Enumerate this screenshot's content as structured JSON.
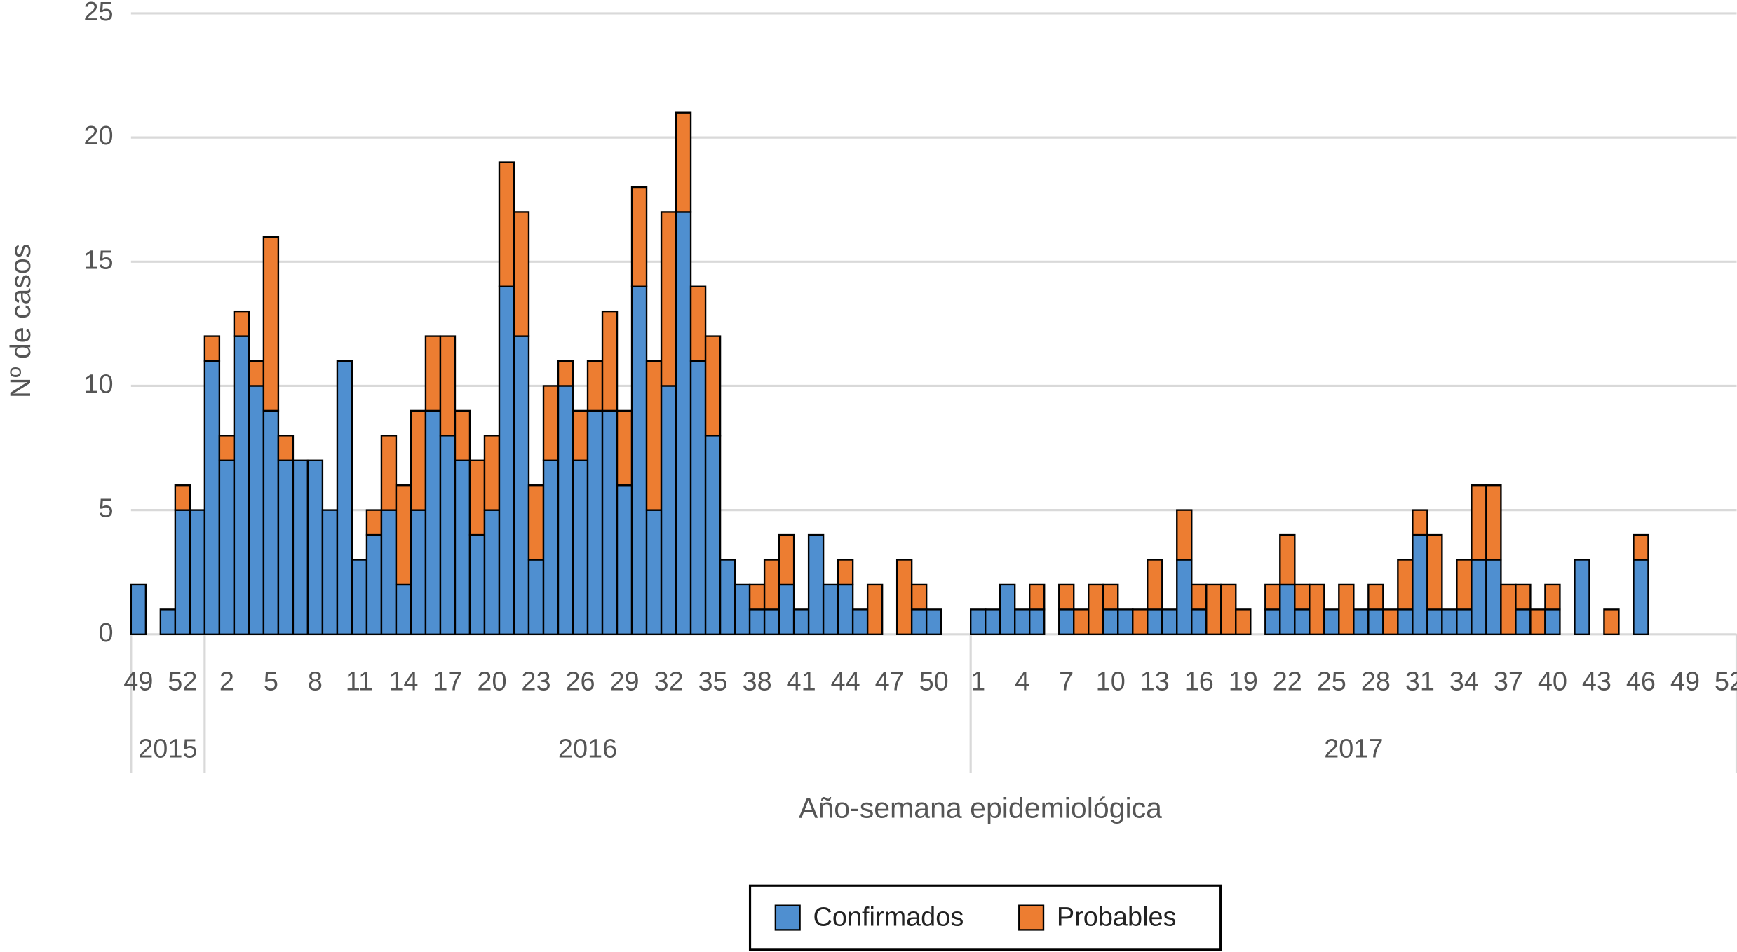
{
  "chart_data": {
    "type": "stacked_bar",
    "y_label": "Nº de casos",
    "x_label": "Año-semana epidemiológica",
    "categories": [
      "49",
      null,
      null,
      "52",
      null,
      null,
      "2",
      null,
      null,
      "5",
      null,
      null,
      "8",
      null,
      null,
      "11",
      null,
      null,
      "14",
      null,
      null,
      "17",
      null,
      null,
      "20",
      null,
      null,
      "23",
      null,
      null,
      "26",
      null,
      null,
      "29",
      null,
      null,
      "32",
      null,
      null,
      "35",
      null,
      null,
      "38",
      null,
      null,
      "41",
      null,
      null,
      "44",
      null,
      null,
      "47",
      null,
      null,
      "50",
      null,
      null,
      "1",
      null,
      null,
      "4",
      null,
      null,
      "7",
      null,
      null,
      "10",
      null,
      null,
      "13",
      null,
      null,
      "16",
      null,
      null,
      "19",
      null,
      null,
      "22",
      null,
      null,
      "25",
      null,
      null,
      "28",
      null,
      null,
      "31",
      null,
      null,
      "34",
      null,
      null,
      "37",
      null,
      null,
      "40",
      null,
      null,
      "43",
      null,
      null,
      "46",
      null,
      null,
      "49",
      null,
      null,
      "52"
    ],
    "years": [
      "2015",
      "2016",
      "2017"
    ],
    "series": [
      {
        "name": "Confirmados",
        "color": "#4f8fd0",
        "values": [
          2,
          0,
          1,
          5,
          5,
          11,
          7,
          12,
          10,
          9,
          7,
          7,
          7,
          5,
          11,
          3,
          4,
          5,
          2,
          5,
          9,
          8,
          7,
          4,
          5,
          14,
          12,
          3,
          7,
          10,
          7,
          9,
          9,
          6,
          14,
          5,
          10,
          17,
          11,
          8,
          3,
          2,
          1,
          1,
          2,
          1,
          4,
          2,
          2,
          1,
          0,
          0,
          0,
          1,
          1,
          0,
          0,
          1,
          1,
          2,
          1,
          1,
          0,
          1,
          0,
          0,
          1,
          1,
          0,
          1,
          1,
          3,
          1,
          0,
          0,
          0,
          0,
          1,
          2,
          1,
          0,
          1,
          0,
          1,
          1,
          0,
          1,
          4,
          1,
          1,
          1,
          3,
          3,
          0,
          1,
          0,
          1,
          0,
          3,
          0,
          0,
          0,
          3,
          0,
          0,
          0,
          0,
          0,
          0
        ]
      },
      {
        "name": "Probables",
        "color": "#ed7d31",
        "values": [
          0,
          0,
          0,
          1,
          0,
          1,
          1,
          1,
          1,
          7,
          1,
          0,
          0,
          0,
          0,
          0,
          1,
          3,
          4,
          4,
          3,
          4,
          2,
          3,
          3,
          5,
          5,
          3,
          3,
          1,
          2,
          2,
          4,
          3,
          4,
          6,
          7,
          4,
          3,
          4,
          0,
          0,
          1,
          2,
          2,
          0,
          0,
          0,
          1,
          0,
          2,
          0,
          3,
          1,
          0,
          0,
          0,
          0,
          0,
          0,
          0,
          1,
          0,
          1,
          1,
          2,
          1,
          0,
          1,
          2,
          0,
          2,
          1,
          2,
          2,
          1,
          0,
          1,
          2,
          1,
          2,
          0,
          2,
          0,
          1,
          1,
          2,
          1,
          3,
          0,
          2,
          3,
          3,
          2,
          1,
          1,
          1,
          0,
          0,
          0,
          1,
          0,
          1,
          0,
          0,
          0,
          0,
          0,
          0
        ]
      }
    ],
    "ylim": [
      0,
      25
    ],
    "yticks": [
      0,
      5,
      10,
      15,
      20,
      25
    ],
    "grid": true,
    "legend": "bottom"
  }
}
